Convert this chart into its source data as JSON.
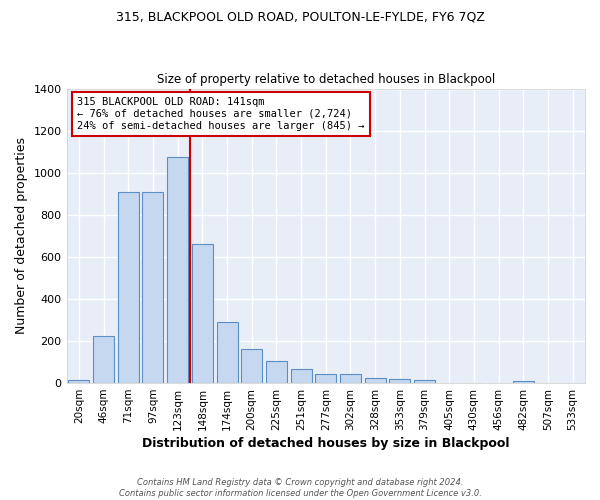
{
  "title1": "315, BLACKPOOL OLD ROAD, POULTON-LE-FYLDE, FY6 7QZ",
  "title2": "Size of property relative to detached houses in Blackpool",
  "xlabel": "Distribution of detached houses by size in Blackpool",
  "ylabel": "Number of detached properties",
  "categories": [
    "20sqm",
    "46sqm",
    "71sqm",
    "97sqm",
    "123sqm",
    "148sqm",
    "174sqm",
    "200sqm",
    "225sqm",
    "251sqm",
    "277sqm",
    "302sqm",
    "328sqm",
    "353sqm",
    "379sqm",
    "405sqm",
    "430sqm",
    "456sqm",
    "482sqm",
    "507sqm",
    "533sqm"
  ],
  "values": [
    15,
    225,
    910,
    910,
    1075,
    660,
    290,
    160,
    105,
    65,
    45,
    45,
    25,
    20,
    15,
    0,
    0,
    0,
    10,
    0,
    0
  ],
  "bar_color": "#c5d8f0",
  "bar_edge_color": "#5b8ec4",
  "bg_color": "#e8eef8",
  "grid_color": "#ffffff",
  "red_line_color": "#cc0000",
  "ylim": [
    0,
    1400
  ],
  "annotation_text": "315 BLACKPOOL OLD ROAD: 141sqm\n← 76% of detached houses are smaller (2,724)\n24% of semi-detached houses are larger (845) →",
  "annotation_box_color": "#ffffff",
  "annotation_box_edge": "#cc0000",
  "footer": "Contains HM Land Registry data © Crown copyright and database right 2024.\nContains public sector information licensed under the Open Government Licence v3.0.",
  "fig_bg_color": "#ffffff",
  "title1_fontsize": 9,
  "title2_fontsize": 8.5
}
